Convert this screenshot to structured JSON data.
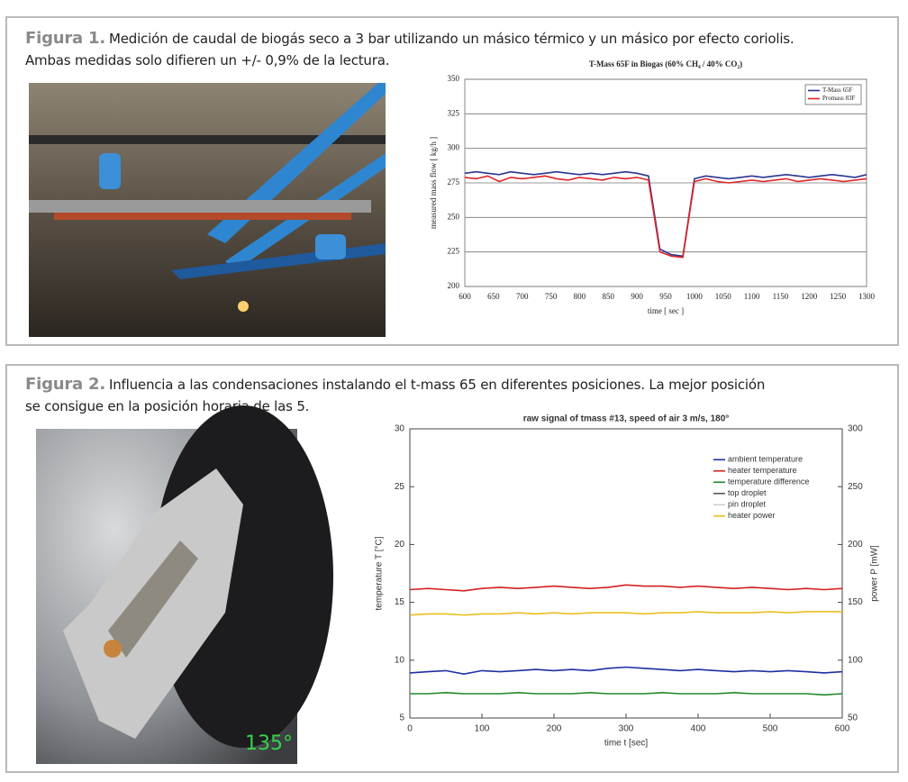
{
  "figures": [
    {
      "label": "Figura 1.",
      "lines": [
        "Medición de caudal de biogás seco a 3 bar utilizando un másico térmico y un másico por efecto coriolis.",
        "Ambas medidas solo difieren un +/- 0,9% de la lectura."
      ]
    },
    {
      "label": "Figura 2.",
      "lines": [
        "Influencia a las condensaciones instalando el t-mass 65 en diferentes posiciones. La mejor posición",
        "se consigue en la posición horaria de las 5."
      ]
    }
  ],
  "photo_label": "135°",
  "chart_data": [
    {
      "type": "line",
      "title": "T-Mass 65F in Biogas (60% CH₄ / 40% CO₂)",
      "xlabel": "time [ sec ]",
      "ylabel": "measured mass flow [ kg/h ]",
      "x": [
        600,
        620,
        640,
        660,
        680,
        700,
        720,
        740,
        760,
        780,
        800,
        820,
        840,
        860,
        880,
        900,
        920,
        940,
        960,
        980,
        1000,
        1020,
        1040,
        1060,
        1080,
        1100,
        1120,
        1140,
        1160,
        1180,
        1200,
        1220,
        1240,
        1260,
        1280,
        1300
      ],
      "series": [
        {
          "name": "T-Mass 65F",
          "color": "#2a3590",
          "values": [
            282,
            283,
            282,
            281,
            283,
            282,
            281,
            282,
            283,
            282,
            281,
            282,
            281,
            282,
            283,
            282,
            280,
            227,
            223,
            222,
            278,
            280,
            279,
            278,
            279,
            280,
            279,
            280,
            281,
            280,
            279,
            280,
            281,
            280,
            279,
            281
          ]
        },
        {
          "name": "Promass 83F",
          "color": "#e02424",
          "values": [
            279,
            278,
            280,
            276,
            279,
            278,
            279,
            280,
            278,
            277,
            279,
            278,
            277,
            279,
            278,
            279,
            277,
            225,
            222,
            221,
            276,
            278,
            276,
            275,
            276,
            277,
            276,
            277,
            278,
            276,
            277,
            278,
            277,
            276,
            277,
            278
          ]
        }
      ],
      "xlim": [
        600,
        1300
      ],
      "xticks": [
        600,
        650,
        700,
        750,
        800,
        850,
        900,
        950,
        1000,
        1050,
        1100,
        1150,
        1200,
        1250,
        1300
      ],
      "ylim": [
        200,
        350
      ],
      "yticks": [
        200,
        225,
        250,
        275,
        300,
        325,
        350
      ],
      "grid": true,
      "legend": "upper right"
    },
    {
      "type": "line",
      "title": "raw signal of tmass #13, speed of air 3 m/s, 180°",
      "xlabel": "time t [sec]",
      "ylabel": "temperature T [°C]",
      "y2label": "power P [mW]",
      "x": [
        0,
        25,
        50,
        75,
        100,
        125,
        150,
        175,
        200,
        225,
        250,
        275,
        300,
        325,
        350,
        375,
        400,
        425,
        450,
        475,
        500,
        525,
        550,
        575,
        600
      ],
      "series": [
        {
          "name": "ambient temperature",
          "color": "#1f2fa0",
          "values": [
            8.9,
            9.0,
            9.1,
            8.8,
            9.1,
            9.0,
            9.1,
            9.2,
            9.1,
            9.2,
            9.1,
            9.3,
            9.4,
            9.3,
            9.2,
            9.1,
            9.2,
            9.1,
            9.0,
            9.1,
            9.0,
            9.1,
            9.0,
            8.9,
            9.0
          ]
        },
        {
          "name": "heater temperature",
          "color": "#d42020",
          "values": [
            16.1,
            16.2,
            16.1,
            16.0,
            16.2,
            16.3,
            16.2,
            16.3,
            16.4,
            16.3,
            16.2,
            16.3,
            16.5,
            16.4,
            16.4,
            16.3,
            16.4,
            16.3,
            16.2,
            16.3,
            16.2,
            16.1,
            16.2,
            16.1,
            16.2
          ]
        },
        {
          "name": "temperature difference",
          "color": "#1f8a2a",
          "values": [
            7.1,
            7.1,
            7.2,
            7.1,
            7.1,
            7.1,
            7.2,
            7.1,
            7.1,
            7.1,
            7.2,
            7.1,
            7.1,
            7.1,
            7.2,
            7.1,
            7.1,
            7.1,
            7.2,
            7.1,
            7.1,
            7.1,
            7.1,
            7.0,
            7.1
          ]
        },
        {
          "name": "top droplet",
          "color": "#555555",
          "values": [
            null,
            null,
            null,
            null,
            null,
            null,
            null,
            null,
            null,
            null,
            null,
            null,
            null,
            null,
            null,
            null,
            null,
            null,
            null,
            null,
            null,
            null,
            null,
            null,
            null
          ]
        },
        {
          "name": "pin droplet",
          "color": "#cfcfcf",
          "values": [
            null,
            null,
            null,
            null,
            null,
            null,
            null,
            null,
            null,
            null,
            null,
            null,
            null,
            null,
            null,
            null,
            null,
            null,
            null,
            null,
            null,
            null,
            null,
            null,
            null
          ]
        },
        {
          "name": "heater power",
          "color": "#e8c020",
          "axis": "y2",
          "values": [
            139,
            140,
            140,
            139,
            140,
            140,
            141,
            140,
            141,
            140,
            141,
            141,
            141,
            140,
            141,
            141,
            142,
            141,
            141,
            141,
            142,
            141,
            142,
            142,
            142
          ]
        }
      ],
      "xlim": [
        0,
        600
      ],
      "xticks": [
        0,
        100,
        200,
        300,
        400,
        500,
        600
      ],
      "ylim": [
        5,
        30
      ],
      "yticks": [
        5,
        10,
        15,
        20,
        25,
        30
      ],
      "y2lim": [
        50,
        300
      ],
      "y2ticks": [
        50,
        100,
        150,
        200,
        250,
        300
      ],
      "grid": false,
      "legend": "upper right"
    }
  ]
}
